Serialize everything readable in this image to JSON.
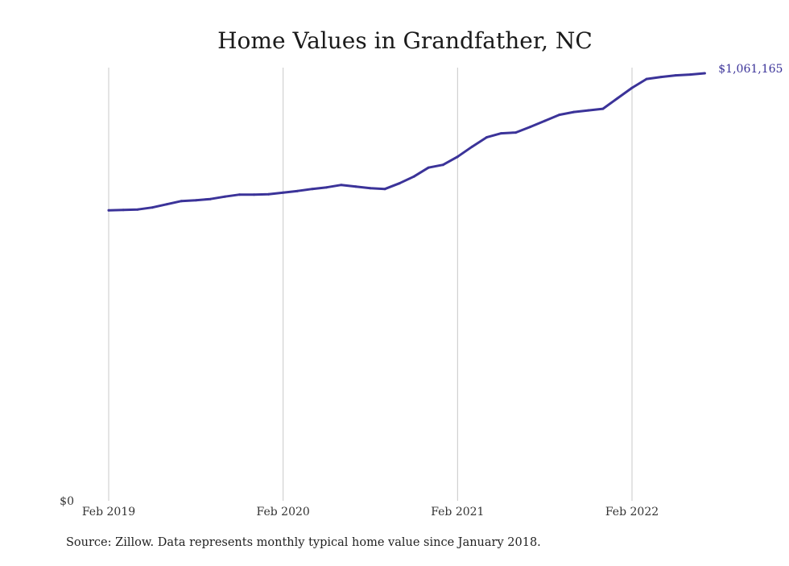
{
  "chart_data": {
    "type": "line",
    "title": "Home Values in Grandfather, NC",
    "xlabel": "",
    "ylabel": "",
    "x_tick_labels": [
      "Feb 2019",
      "Feb 2020",
      "Feb 2021",
      "Feb 2022"
    ],
    "y_tick_labels": [
      "$0"
    ],
    "end_label": "$1,061,165",
    "ylim": [
      0,
      1061165
    ],
    "grid": "vertical",
    "line_color": "#3b3399",
    "source": "Source: Zillow. Data represents monthly typical home value since January 2018.",
    "series": [
      {
        "x": [
          "2019-02",
          "2019-03",
          "2019-04",
          "2019-05",
          "2019-06",
          "2019-07",
          "2019-08",
          "2019-09",
          "2019-10",
          "2019-11",
          "2019-12",
          "2020-01",
          "2020-02",
          "2020-03",
          "2020-04",
          "2020-05",
          "2020-06",
          "2020-07",
          "2020-08",
          "2020-09",
          "2020-10",
          "2020-11",
          "2020-12",
          "2021-01",
          "2021-02",
          "2021-03",
          "2021-04",
          "2021-05",
          "2021-06",
          "2021-07",
          "2021-08",
          "2021-09",
          "2021-10",
          "2021-11",
          "2021-12",
          "2022-01",
          "2022-02",
          "2022-03",
          "2022-04",
          "2022-05",
          "2022-06",
          "2022-07"
        ],
        "values": [
          721000,
          722000,
          723000,
          728000,
          736000,
          744000,
          746000,
          749000,
          755000,
          760000,
          760000,
          761000,
          765000,
          769000,
          774000,
          778000,
          784000,
          780000,
          776000,
          774000,
          788000,
          805000,
          827000,
          834000,
          854000,
          879000,
          902000,
          912000,
          914000,
          928000,
          943000,
          958000,
          965000,
          969000,
          973000,
          999000,
          1025000,
          1047000,
          1052000,
          1056000,
          1058000,
          1061165
        ]
      }
    ]
  }
}
